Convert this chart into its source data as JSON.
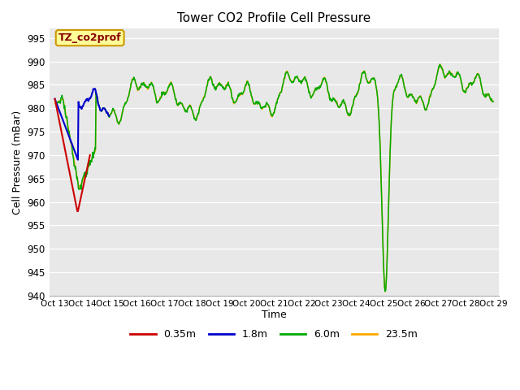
{
  "title": "Tower CO2 Profile Cell Pressure",
  "xlabel": "Time",
  "ylabel": "Cell Pressure (mBar)",
  "ylim": [
    940,
    997
  ],
  "yticks": [
    940,
    945,
    950,
    955,
    960,
    965,
    970,
    975,
    980,
    985,
    990,
    995
  ],
  "xtick_labels": [
    "Oct 13",
    "Oct 14",
    "Oct 15",
    "Oct 16",
    "Oct 17",
    "Oct 18",
    "Oct 19",
    "Oct 20",
    "Oct 21",
    "Oct 22",
    "Oct 23",
    "Oct 24",
    "Oct 25",
    "Oct 26",
    "Oct 27",
    "Oct 28",
    "Oct 29"
  ],
  "legend_labels": [
    "0.35m",
    "1.8m",
    "6.0m",
    "23.5m"
  ],
  "legend_colors": [
    "#cc0000",
    "#0000cc",
    "#00aa00",
    "#ffaa00"
  ],
  "colors": {
    "red": "#cc0000",
    "blue": "#0000cc",
    "green": "#00aa00",
    "orange": "#ffaa00"
  },
  "annotation_label": "TZ_co2prof",
  "annotation_text_color": "#880000",
  "annotation_bg": "#ffff99",
  "annotation_border": "#cc9900",
  "plot_bg": "#e8e8e8",
  "grid_color": "#ffffff",
  "xlim": [
    0,
    16
  ],
  "n_points": 800,
  "n_days": 16
}
